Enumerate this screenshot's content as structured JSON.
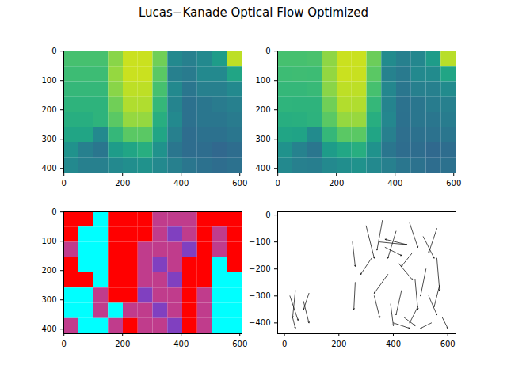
{
  "title": "Lucas−Kanade Optical Flow Optimized",
  "chart_data": [
    {
      "type": "image",
      "color": "viridis",
      "xlim": [
        -0.5,
        607.5
      ],
      "ylim": [
        415.5,
        -0.5
      ],
      "xticks": [
        0,
        200,
        400,
        600
      ],
      "yticks": [
        0,
        100,
        200,
        300,
        400
      ],
      "zlim": [
        0,
        255
      ],
      "cells": [
        [
          180,
          180,
          180,
          210,
          235,
          235,
          200,
          120,
          110,
          120,
          140,
          230
        ],
        [
          175,
          175,
          175,
          215,
          235,
          235,
          190,
          110,
          105,
          120,
          120,
          150
        ],
        [
          170,
          170,
          170,
          210,
          230,
          230,
          180,
          120,
          100,
          110,
          110,
          120
        ],
        [
          165,
          165,
          165,
          200,
          225,
          225,
          170,
          115,
          95,
          100,
          105,
          110
        ],
        [
          160,
          160,
          165,
          190,
          215,
          215,
          160,
          120,
          95,
          100,
          100,
          105
        ],
        [
          150,
          150,
          120,
          170,
          190,
          190,
          150,
          110,
          90,
          95,
          95,
          100
        ],
        [
          130,
          110,
          100,
          140,
          150,
          160,
          130,
          100,
          90,
          90,
          85,
          90
        ],
        [
          120,
          110,
          110,
          120,
          125,
          130,
          120,
          110,
          100,
          95,
          90,
          95
        ]
      ]
    },
    {
      "type": "image",
      "color": "viridis",
      "xlim": [
        -0.5,
        607.5
      ],
      "ylim": [
        415.5,
        -0.5
      ],
      "xticks": [
        0,
        200,
        400,
        600
      ],
      "yticks": [
        0,
        100,
        200,
        300,
        400
      ],
      "zlim": [
        0,
        255
      ],
      "cells": [
        [
          180,
          180,
          182,
          212,
          235,
          235,
          198,
          122,
          110,
          118,
          140,
          228
        ],
        [
          175,
          176,
          175,
          214,
          235,
          234,
          190,
          112,
          104,
          120,
          122,
          150
        ],
        [
          170,
          170,
          172,
          210,
          230,
          230,
          180,
          118,
          100,
          110,
          110,
          122
        ],
        [
          166,
          165,
          165,
          200,
          226,
          225,
          170,
          115,
          96,
          100,
          106,
          110
        ],
        [
          160,
          161,
          164,
          190,
          215,
          216,
          160,
          118,
          95,
          100,
          100,
          106
        ],
        [
          150,
          148,
          122,
          170,
          190,
          190,
          150,
          110,
          92,
          95,
          96,
          100
        ],
        [
          130,
          112,
          100,
          140,
          152,
          160,
          130,
          100,
          90,
          90,
          86,
          90
        ],
        [
          120,
          110,
          108,
          120,
          125,
          130,
          120,
          110,
          100,
          96,
          90,
          95
        ]
      ]
    },
    {
      "type": "image",
      "xlim": [
        -0.5,
        607.5
      ],
      "ylim": [
        415.5,
        -0.5
      ],
      "xticks": [
        0,
        200,
        400,
        600
      ],
      "yticks": [
        0,
        100,
        200,
        300,
        400
      ],
      "colors": [
        [
          "#ff0000",
          "#ff0000",
          "#00ffff",
          "#ff0000",
          "#ff0000",
          "#ff0000",
          "#c03c8c",
          "#c03c8c",
          "#c03c8c",
          "#ff0000",
          "#ff0000",
          "#ff0000"
        ],
        [
          "#ff0000",
          "#00ffff",
          "#00ffff",
          "#ff0000",
          "#ff0000",
          "#ff0000",
          "#c03c8c",
          "#8040c0",
          "#c03c8c",
          "#ff0000",
          "#c03c8c",
          "#ff0000"
        ],
        [
          "#c03c8c",
          "#00ffff",
          "#00ffff",
          "#ff0000",
          "#ff0000",
          "#c03c8c",
          "#c03c8c",
          "#c03c8c",
          "#8040c0",
          "#ff0000",
          "#c03c8c",
          "#ff0000"
        ],
        [
          "#ff0000",
          "#00ffff",
          "#00ffff",
          "#ff0000",
          "#ff0000",
          "#c03c8c",
          "#8040c0",
          "#c03c8c",
          "#ff0000",
          "#ff0000",
          "#00ffff",
          "#ff0000"
        ],
        [
          "#ff0000",
          "#ff0000",
          "#00ffff",
          "#ff0000",
          "#ff0000",
          "#c03c8c",
          "#c03c8c",
          "#8040c0",
          "#ff0000",
          "#ff0000",
          "#00ffff",
          "#00ffff"
        ],
        [
          "#00ffff",
          "#00ffff",
          "#c03c8c",
          "#ff0000",
          "#ff0000",
          "#8040c0",
          "#c03c8c",
          "#c03c8c",
          "#ff0000",
          "#c03c8c",
          "#00ffff",
          "#00ffff"
        ],
        [
          "#00ffff",
          "#00ffff",
          "#c03c8c",
          "#00ffff",
          "#c03c8c",
          "#c03c8c",
          "#8040c0",
          "#c03c8c",
          "#ff0000",
          "#c03c8c",
          "#00ffff",
          "#00ffff"
        ],
        [
          "#c03c8c",
          "#00ffff",
          "#00ffff",
          "#c03c8c",
          "#ff0000",
          "#c03c8c",
          "#c03c8c",
          "#8040c0",
          "#ff0000",
          "#c03c8c",
          "#00ffff",
          "#00ffff"
        ]
      ]
    },
    {
      "type": "quiver",
      "color": "#000000",
      "xlim": [
        -25,
        630
      ],
      "ylim": [
        -440,
        12
      ],
      "xticks": [
        0,
        200,
        400,
        600
      ],
      "yticks": [
        0,
        -100,
        -200,
        -300,
        -400
      ],
      "x": [
        250,
        260,
        300,
        320,
        330,
        360,
        370,
        380,
        390,
        410,
        420,
        430,
        440,
        460,
        470,
        480,
        490,
        510,
        520,
        530,
        540,
        560,
        560,
        570,
        580,
        20,
        40,
        70,
        90,
        30,
        350,
        450,
        400
      ],
      "y": [
        -100,
        -250,
        -40,
        -160,
        -300,
        -20,
        -120,
        -220,
        -330,
        -60,
        -180,
        -280,
        -380,
        -30,
        -140,
        -240,
        -340,
        -80,
        -200,
        -300,
        -400,
        -50,
        -160,
        -260,
        -380,
        -300,
        -280,
        -320,
        -290,
        -380,
        -100,
        -110,
        -400
      ],
      "u": [
        10,
        -5,
        30,
        -40,
        20,
        -20,
        60,
        -50,
        10,
        -30,
        50,
        -20,
        40,
        30,
        -40,
        10,
        -30,
        40,
        -20,
        30,
        -40,
        -30,
        10,
        -20,
        20,
        30,
        -10,
        20,
        -20,
        10,
        100,
        -80,
        60
      ],
      "v": [
        -90,
        -100,
        -120,
        -60,
        -80,
        -110,
        -30,
        -70,
        -80,
        -100,
        -60,
        -90,
        -30,
        -90,
        -50,
        -110,
        -60,
        -80,
        -100,
        -70,
        -20,
        -90,
        -120,
        -80,
        -40,
        -90,
        -100,
        -80,
        -60,
        -40,
        -10,
        20,
        -20
      ]
    }
  ]
}
